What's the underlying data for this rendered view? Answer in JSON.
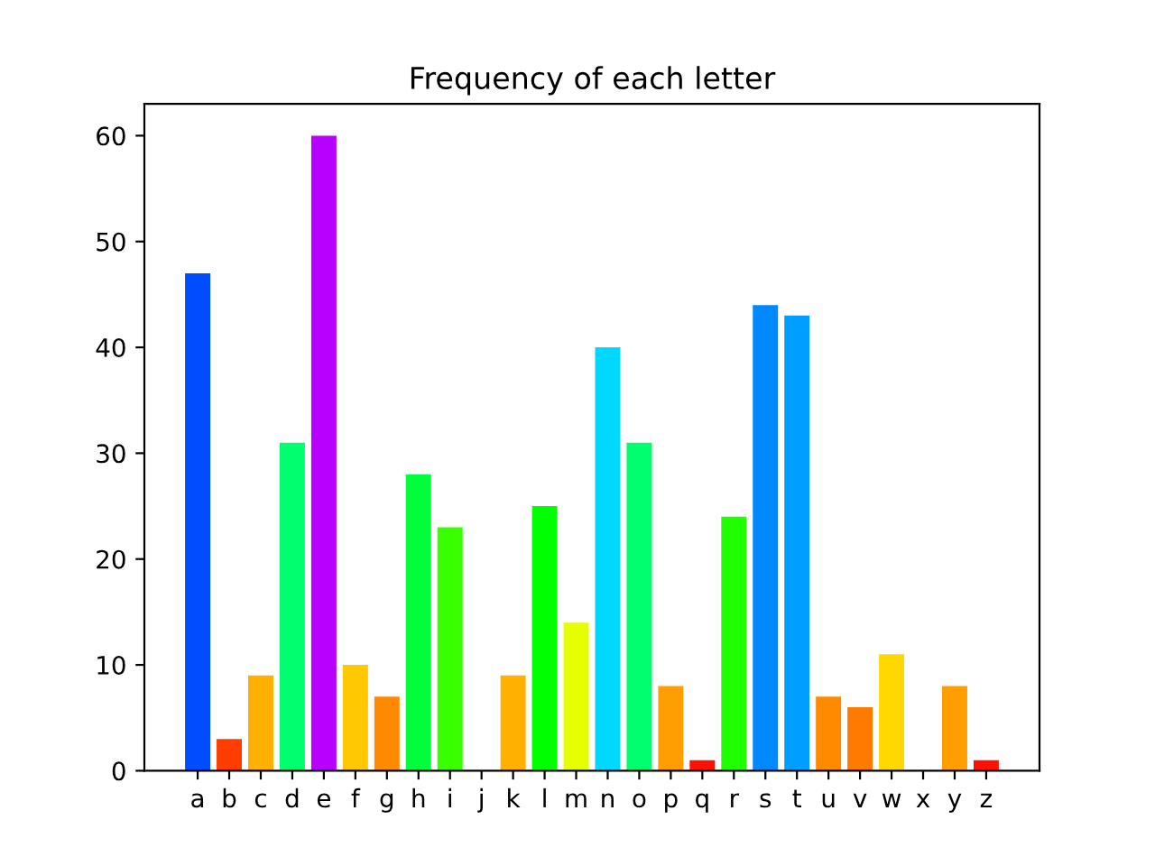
{
  "chart_data": {
    "type": "bar",
    "title": "Frequency of each letter",
    "categories": [
      "a",
      "b",
      "c",
      "d",
      "e",
      "f",
      "g",
      "h",
      "i",
      "j",
      "k",
      "l",
      "m",
      "n",
      "o",
      "p",
      "q",
      "r",
      "s",
      "t",
      "u",
      "v",
      "w",
      "x",
      "y",
      "z"
    ],
    "values": [
      47,
      3,
      9,
      31,
      60,
      10,
      7,
      28,
      23,
      0,
      9,
      25,
      14,
      40,
      31,
      8,
      1,
      24,
      44,
      43,
      7,
      6,
      11,
      0,
      8,
      1
    ],
    "colors": [
      "#004cff",
      "#ff3d00",
      "#ffb000",
      "#00ff6e",
      "#b800ff",
      "#ffc800",
      "#ff8a00",
      "#00ff3a",
      "#3aff00",
      "#ff0000",
      "#ffb000",
      "#00ff00",
      "#e6ff00",
      "#00d8ff",
      "#00ff6e",
      "#ff9e00",
      "#ff1000",
      "#20ff00",
      "#0088ff",
      "#009eff",
      "#ff8a00",
      "#ff7a00",
      "#ffd800",
      "#ff0000",
      "#ff9e00",
      "#ff1000"
    ],
    "ylim": [
      0,
      63
    ],
    "yticks": [
      0,
      10,
      20,
      30,
      40,
      50,
      60
    ],
    "grid": false,
    "legend": false
  }
}
